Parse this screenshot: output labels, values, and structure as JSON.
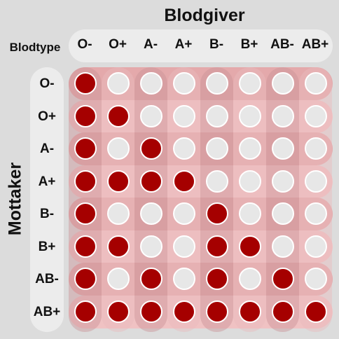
{
  "title_donor": "Blodgiver",
  "title_recipient": "Mottaker",
  "bloodtype_label": "Blodtype",
  "types": [
    "O-",
    "O+",
    "A-",
    "A+",
    "B-",
    "B+",
    "AB-",
    "AB+"
  ],
  "colors": {
    "compatible": "#a50000",
    "incompatible": "#e7e7e7",
    "band_a": "#e4a9ab",
    "band_b": "#f0c2c3",
    "col_band_dark": "#c99396",
    "col_band_light": "#e9bbbd"
  },
  "compatibility": [
    [
      1,
      0,
      0,
      0,
      0,
      0,
      0,
      0
    ],
    [
      1,
      1,
      0,
      0,
      0,
      0,
      0,
      0
    ],
    [
      1,
      0,
      1,
      0,
      0,
      0,
      0,
      0
    ],
    [
      1,
      1,
      1,
      1,
      0,
      0,
      0,
      0
    ],
    [
      1,
      0,
      0,
      0,
      1,
      0,
      0,
      0
    ],
    [
      1,
      1,
      0,
      0,
      1,
      1,
      0,
      0
    ],
    [
      1,
      0,
      1,
      0,
      1,
      0,
      1,
      0
    ],
    [
      1,
      1,
      1,
      1,
      1,
      1,
      1,
      1
    ]
  ]
}
